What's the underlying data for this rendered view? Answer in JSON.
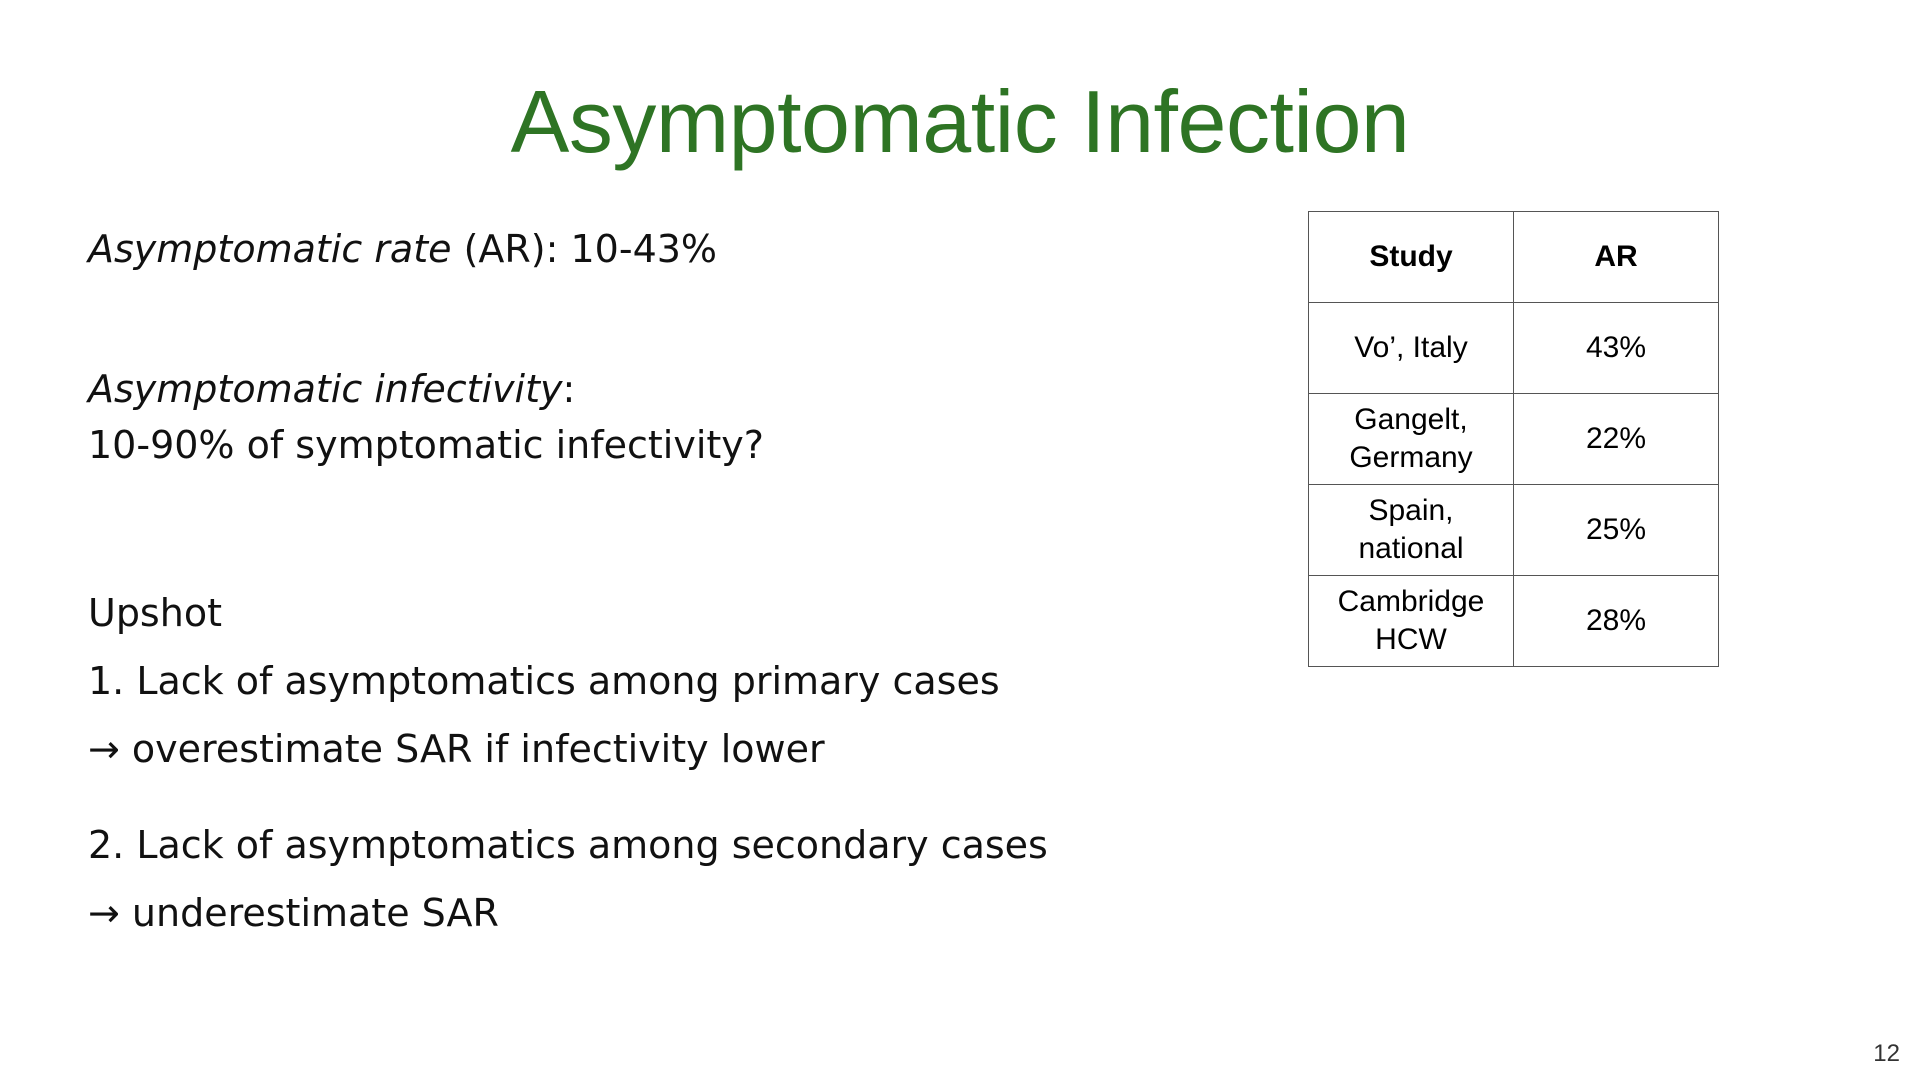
{
  "slide": {
    "title": "Asymptomatic Infection",
    "page_number": "12",
    "ar_line": {
      "italic": "Asymptomatic rate",
      "rest": " (AR): 10-43%"
    },
    "infectivity": {
      "italic": "Asymptomatic infectivity",
      "colon": ":",
      "line2": "10-90% of symptomatic infectivity?"
    },
    "upshot": {
      "heading": "Upshot",
      "point1": "1. Lack of asymptomatics among primary cases",
      "point1_result": "→ overestimate SAR if infectivity lower",
      "point2": "2. Lack of asymptomatics among secondary cases",
      "point2_result": "→ underestimate SAR"
    },
    "colors": {
      "title": "#2e7424"
    }
  },
  "table": {
    "headers": [
      "Study",
      "AR"
    ],
    "rows": [
      {
        "study": "Vo’, Italy",
        "ar": "43%"
      },
      {
        "study": "Gangelt, Germany",
        "ar": "22%"
      },
      {
        "study": "Spain, national",
        "ar": "25%"
      },
      {
        "study": "Cambridge HCW",
        "ar": "28%"
      }
    ]
  }
}
